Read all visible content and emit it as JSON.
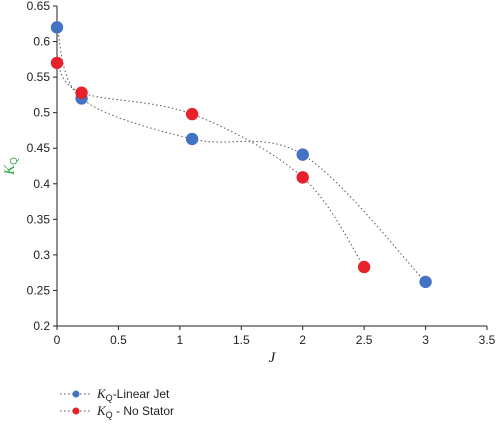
{
  "chart_data": {
    "type": "scatter",
    "xlabel": "J",
    "ylabel": {
      "main": "K",
      "sub": "Q"
    },
    "xlim": [
      0,
      3.5
    ],
    "ylim": [
      0.2,
      0.65
    ],
    "xticks": [
      "0",
      "0.5",
      "1",
      "1.5",
      "2",
      "2.5",
      "3",
      "3.5"
    ],
    "yticks": [
      "0.2",
      "0.25",
      "0.3",
      "0.35",
      "0.4",
      "0.45",
      "0.5",
      "0.55",
      "0.6",
      "0.65"
    ],
    "grid": false,
    "legend_position": "bottom-left",
    "series": [
      {
        "label_main": "K",
        "label_sub": "Q",
        "label_rest": "-Linear Jet",
        "color": "#4472c4",
        "line_style": "dotted",
        "x": [
          0,
          0.2,
          1.1,
          2.0,
          3.0
        ],
        "y": [
          0.62,
          0.52,
          0.463,
          0.441,
          0.262
        ]
      },
      {
        "label_main": "K",
        "label_sub": "Q",
        "label_rest": " - No Stator",
        "color": "#e8202a",
        "line_style": "dotted",
        "x": [
          0,
          0.2,
          1.1,
          2.0,
          2.5
        ],
        "y": [
          0.57,
          0.528,
          0.498,
          0.409,
          0.283
        ]
      }
    ],
    "colors": {
      "ylabel": "#2aa84a",
      "axis": "#222222",
      "line": "#555555"
    }
  }
}
